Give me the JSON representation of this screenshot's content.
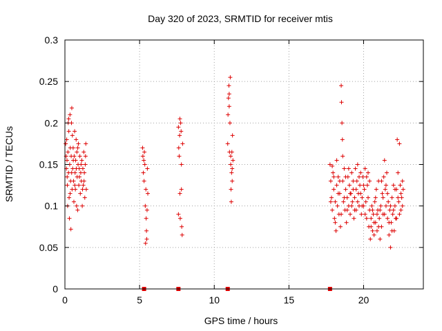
{
  "chart_data": {
    "type": "scatter",
    "title": "Day 320 of 2023, SRMTID for receiver mtis",
    "xlabel": "GPS time / hours",
    "ylabel": "SRMTID / TECUs",
    "xlim": [
      0,
      24
    ],
    "ylim": [
      0,
      0.3
    ],
    "xticks": [
      0,
      5,
      10,
      15,
      20
    ],
    "yticks": [
      0,
      0.05,
      0.1,
      0.15,
      0.2,
      0.25,
      0.3
    ],
    "x_tick_labels": [
      "0",
      "5",
      "10",
      "15",
      "20"
    ],
    "y_tick_labels": [
      "0",
      "0.05",
      "0.1",
      "0.15",
      "0.2",
      "0.25",
      "0.3"
    ],
    "grid": true,
    "marker": "+",
    "color": "#dd0000",
    "series": [
      {
        "points": [
          [
            0.05,
            0.175
          ],
          [
            0.08,
            0.16
          ],
          [
            0.1,
            0.145
          ],
          [
            0.12,
            0.18
          ],
          [
            0.14,
            0.155
          ],
          [
            0.16,
            0.125
          ],
          [
            0.18,
            0.1
          ],
          [
            0.2,
            0.165
          ],
          [
            0.22,
            0.2
          ],
          [
            0.24,
            0.14
          ],
          [
            0.26,
            0.19
          ],
          [
            0.28,
            0.11
          ],
          [
            0.3,
            0.085
          ],
          [
            0.32,
            0.15
          ],
          [
            0.34,
            0.21
          ],
          [
            0.36,
            0.17
          ],
          [
            0.38,
            0.13
          ],
          [
            0.4,
            0.072
          ],
          [
            0.42,
            0.16
          ],
          [
            0.44,
            0.2
          ],
          [
            0.46,
            0.218
          ],
          [
            0.48,
            0.12
          ],
          [
            0.5,
            0.185
          ],
          [
            0.52,
            0.145
          ],
          [
            0.55,
            0.17
          ],
          [
            0.58,
            0.13
          ],
          [
            0.6,
            0.105
          ],
          [
            0.62,
            0.16
          ],
          [
            0.65,
            0.19
          ],
          [
            0.68,
            0.14
          ],
          [
            0.7,
            0.12
          ],
          [
            0.72,
            0.155
          ],
          [
            0.75,
            0.18
          ],
          [
            0.78,
            0.1
          ],
          [
            0.8,
            0.165
          ],
          [
            0.82,
            0.135
          ],
          [
            0.85,
            0.095
          ],
          [
            0.88,
            0.15
          ],
          [
            0.9,
            0.175
          ],
          [
            0.93,
            0.125
          ],
          [
            0.96,
            0.145
          ],
          [
            1.0,
            0.16
          ],
          [
            1.03,
            0.115
          ],
          [
            1.06,
            0.14
          ],
          [
            1.1,
            0.13
          ],
          [
            1.13,
            0.155
          ],
          [
            1.16,
            0.1
          ],
          [
            1.2,
            0.145
          ],
          [
            1.23,
            0.125
          ],
          [
            1.26,
            0.165
          ],
          [
            1.3,
            0.14
          ],
          [
            1.33,
            0.11
          ],
          [
            1.36,
            0.15
          ],
          [
            1.4,
            0.175
          ],
          [
            1.43,
            0.12
          ],
          [
            0.15,
            0.135
          ],
          [
            0.25,
            0.205
          ],
          [
            0.35,
            0.115
          ],
          [
            0.45,
            0.14
          ],
          [
            0.56,
            0.155
          ],
          [
            0.66,
            0.125
          ],
          [
            0.76,
            0.145
          ],
          [
            0.86,
            0.17
          ],
          [
            0.97,
            0.135
          ],
          [
            1.08,
            0.15
          ],
          [
            1.18,
            0.12
          ],
          [
            1.28,
            0.13
          ],
          [
            1.38,
            0.16
          ],
          [
            5.2,
            0.17
          ],
          [
            5.22,
            0.16
          ],
          [
            5.25,
            0.14
          ],
          [
            5.28,
            0.155
          ],
          [
            5.3,
            0.13
          ],
          [
            5.32,
            0.165
          ],
          [
            5.35,
            0.15
          ],
          [
            5.38,
            0.1
          ],
          [
            5.4,
            0.055
          ],
          [
            5.42,
            0.12
          ],
          [
            5.44,
            0.085
          ],
          [
            5.46,
            0.07
          ],
          [
            5.48,
            0.06
          ],
          [
            5.5,
            0.095
          ],
          [
            5.52,
            0.145
          ],
          [
            5.55,
            0.115
          ],
          [
            7.6,
            0.195
          ],
          [
            7.62,
            0.17
          ],
          [
            7.65,
            0.16
          ],
          [
            7.68,
            0.185
          ],
          [
            7.7,
            0.115
          ],
          [
            7.72,
            0.085
          ],
          [
            7.75,
            0.2
          ],
          [
            7.78,
            0.19
          ],
          [
            7.8,
            0.15
          ],
          [
            7.82,
            0.075
          ],
          [
            7.85,
            0.065
          ],
          [
            7.88,
            0.175
          ],
          [
            7.6,
            0.09
          ],
          [
            7.7,
            0.205
          ],
          [
            7.8,
            0.12
          ],
          [
            10.9,
            0.175
          ],
          [
            10.92,
            0.21
          ],
          [
            10.95,
            0.23
          ],
          [
            10.98,
            0.245
          ],
          [
            11.0,
            0.22
          ],
          [
            11.02,
            0.165
          ],
          [
            11.05,
            0.2
          ],
          [
            11.07,
            0.255
          ],
          [
            11.1,
            0.15
          ],
          [
            11.12,
            0.12
          ],
          [
            11.14,
            0.105
          ],
          [
            11.16,
            0.14
          ],
          [
            11.18,
            0.165
          ],
          [
            11.2,
            0.13
          ],
          [
            11.22,
            0.185
          ],
          [
            11.25,
            0.155
          ],
          [
            11.0,
            0.235
          ],
          [
            11.1,
            0.16
          ],
          [
            11.2,
            0.145
          ],
          [
            17.75,
            0.15
          ],
          [
            17.8,
            0.13
          ],
          [
            17.85,
            0.11
          ],
          [
            17.9,
            0.095
          ],
          [
            17.95,
            0.14
          ],
          [
            18.0,
            0.12
          ],
          [
            18.05,
            0.085
          ],
          [
            18.1,
            0.105
          ],
          [
            18.15,
            0.07
          ],
          [
            18.2,
            0.125
          ],
          [
            18.25,
            0.1
          ],
          [
            18.3,
            0.135
          ],
          [
            18.35,
            0.09
          ],
          [
            18.4,
            0.115
          ],
          [
            18.45,
            0.075
          ],
          [
            18.5,
            0.245
          ],
          [
            18.52,
            0.225
          ],
          [
            18.55,
            0.2
          ],
          [
            18.58,
            0.18
          ],
          [
            18.6,
            0.13
          ],
          [
            18.65,
            0.105
          ],
          [
            18.7,
            0.145
          ],
          [
            18.75,
            0.095
          ],
          [
            18.8,
            0.12
          ],
          [
            18.85,
            0.08
          ],
          [
            18.9,
            0.11
          ],
          [
            18.95,
            0.135
          ],
          [
            19.0,
            0.1
          ],
          [
            19.05,
            0.125
          ],
          [
            19.1,
            0.09
          ],
          [
            19.15,
            0.115
          ],
          [
            19.2,
            0.14
          ],
          [
            19.25,
            0.105
          ],
          [
            19.3,
            0.12
          ],
          [
            19.35,
            0.085
          ],
          [
            19.4,
            0.11
          ],
          [
            19.45,
            0.145
          ],
          [
            19.5,
            0.095
          ],
          [
            19.55,
            0.13
          ],
          [
            19.6,
            0.15
          ],
          [
            19.65,
            0.115
          ],
          [
            19.7,
            0.1
          ],
          [
            19.75,
            0.125
          ],
          [
            19.8,
            0.14
          ],
          [
            19.85,
            0.09
          ],
          [
            19.9,
            0.11
          ],
          [
            19.95,
            0.135
          ],
          [
            20.0,
            0.1
          ],
          [
            20.05,
            0.12
          ],
          [
            20.1,
            0.145
          ],
          [
            20.15,
            0.105
          ],
          [
            20.2,
            0.085
          ],
          [
            20.25,
            0.125
          ],
          [
            20.3,
            0.14
          ],
          [
            20.35,
            0.075
          ],
          [
            20.4,
            0.095
          ],
          [
            20.45,
            0.06
          ],
          [
            20.5,
            0.085
          ],
          [
            20.55,
            0.1
          ],
          [
            20.6,
            0.07
          ],
          [
            20.65,
            0.09
          ],
          [
            20.7,
            0.065
          ],
          [
            20.75,
            0.105
          ],
          [
            20.8,
            0.08
          ],
          [
            20.85,
            0.12
          ],
          [
            20.9,
            0.07
          ],
          [
            20.95,
            0.095
          ],
          [
            21.0,
            0.13
          ],
          [
            21.05,
            0.085
          ],
          [
            21.1,
            0.06
          ],
          [
            21.15,
            0.1
          ],
          [
            21.2,
            0.075
          ],
          [
            21.25,
            0.115
          ],
          [
            21.3,
            0.09
          ],
          [
            21.35,
            0.135
          ],
          [
            21.4,
            0.155
          ],
          [
            21.45,
            0.12
          ],
          [
            21.5,
            0.1
          ],
          [
            21.55,
            0.14
          ],
          [
            21.6,
            0.085
          ],
          [
            21.65,
            0.105
          ],
          [
            21.7,
            0.065
          ],
          [
            21.75,
            0.095
          ],
          [
            21.8,
            0.05
          ],
          [
            21.85,
            0.08
          ],
          [
            21.9,
            0.11
          ],
          [
            21.95,
            0.09
          ],
          [
            22.0,
            0.125
          ],
          [
            22.05,
            0.07
          ],
          [
            22.1,
            0.1
          ],
          [
            22.15,
            0.085
          ],
          [
            22.2,
            0.12
          ],
          [
            22.25,
            0.18
          ],
          [
            22.3,
            0.14
          ],
          [
            22.35,
            0.105
          ],
          [
            22.4,
            0.175
          ],
          [
            22.45,
            0.125
          ],
          [
            22.5,
            0.095
          ],
          [
            22.55,
            0.11
          ],
          [
            22.6,
            0.13
          ],
          [
            22.65,
            0.12
          ],
          [
            17.8,
            0.105
          ],
          [
            17.9,
            0.148
          ],
          [
            18.0,
            0.135
          ],
          [
            18.1,
            0.08
          ],
          [
            18.2,
            0.155
          ],
          [
            18.3,
            0.115
          ],
          [
            18.4,
            0.13
          ],
          [
            18.5,
            0.09
          ],
          [
            18.6,
            0.16
          ],
          [
            18.7,
            0.11
          ],
          [
            18.8,
            0.135
          ],
          [
            18.9,
            0.095
          ],
          [
            19.0,
            0.145
          ],
          [
            19.1,
            0.115
          ],
          [
            19.2,
            0.1
          ],
          [
            19.3,
            0.13
          ],
          [
            19.4,
            0.095
          ],
          [
            19.5,
            0.12
          ],
          [
            19.6,
            0.105
          ],
          [
            19.7,
            0.135
          ],
          [
            19.8,
            0.115
          ],
          [
            19.9,
            0.1
          ],
          [
            20.0,
            0.125
          ],
          [
            20.1,
            0.09
          ],
          [
            20.2,
            0.135
          ],
          [
            20.3,
            0.11
          ],
          [
            20.4,
            0.13
          ],
          [
            20.5,
            0.075
          ],
          [
            20.6,
            0.095
          ],
          [
            20.7,
            0.08
          ],
          [
            20.8,
            0.11
          ],
          [
            20.9,
            0.09
          ],
          [
            21.0,
            0.075
          ],
          [
            21.1,
            0.095
          ],
          [
            21.2,
            0.13
          ],
          [
            21.3,
            0.11
          ],
          [
            21.4,
            0.09
          ],
          [
            21.5,
            0.125
          ],
          [
            21.6,
            0.115
          ],
          [
            21.7,
            0.08
          ],
          [
            21.8,
            0.1
          ],
          [
            21.9,
            0.07
          ],
          [
            22.0,
            0.095
          ],
          [
            22.1,
            0.12
          ],
          [
            22.2,
            0.085
          ],
          [
            22.3,
            0.11
          ],
          [
            22.4,
            0.09
          ],
          [
            22.5,
            0.115
          ],
          [
            22.6,
            0.1
          ]
        ]
      },
      {
        "marker": "square",
        "points": [
          [
            5.3,
            0
          ],
          [
            7.6,
            0
          ],
          [
            10.9,
            0
          ],
          [
            17.75,
            0
          ]
        ]
      }
    ]
  }
}
